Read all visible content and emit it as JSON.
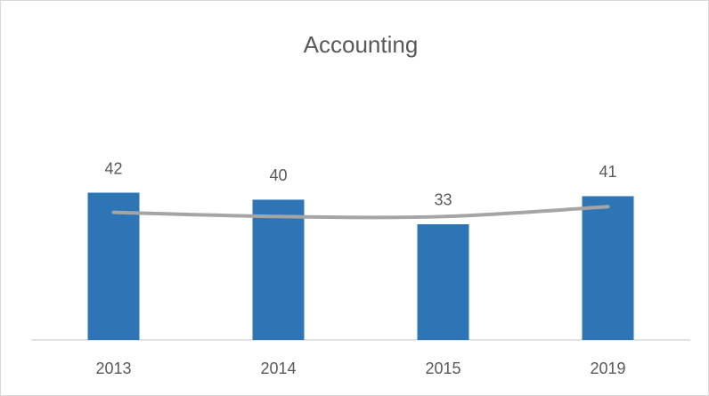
{
  "chart_data": {
    "type": "bar",
    "title": "Accounting",
    "categories": [
      "2013",
      "2014",
      "2015",
      "2019"
    ],
    "series": [
      {
        "type": "bar",
        "color": "#2e75b6",
        "values": [
          42,
          40,
          33,
          41
        ]
      },
      {
        "type": "line",
        "color": "#a5a5a5",
        "values": [
          36.4,
          35.2,
          35.2,
          38
        ]
      }
    ],
    "ylim": [
      0,
      50
    ],
    "grid": false
  }
}
